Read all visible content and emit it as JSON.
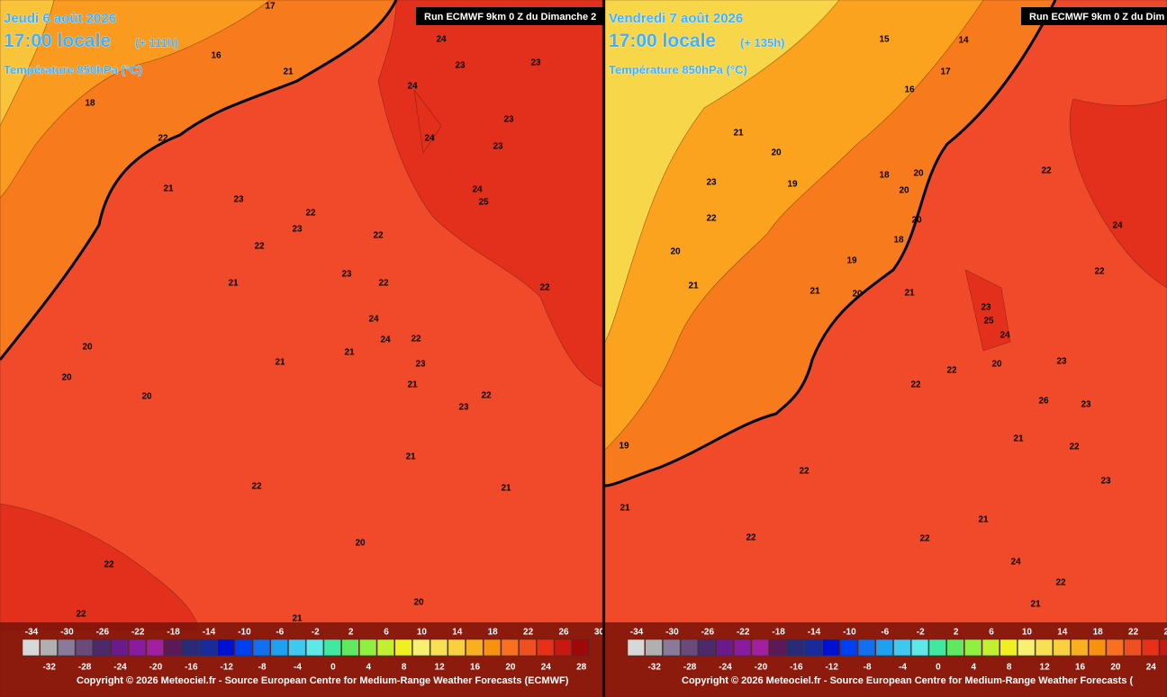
{
  "panels": [
    {
      "date": "Jeudi 6 août 2026",
      "time": "17:00 locale",
      "lead": "(+ 111h)",
      "field": "Température 850hPa (°C)",
      "run": "Run ECMWF 9km 0 Z du Dimanche 2",
      "copyright": "Copyright © 2026 Meteociel.fr - Source European Centre for Medium-Range Weather Forecasts (ECMWF)",
      "map_labels": [
        24,
        23,
        23,
        24,
        23,
        24,
        23,
        22,
        21,
        23,
        22,
        23,
        22,
        24,
        25,
        22,
        21,
        23,
        22,
        22,
        24,
        24,
        22,
        21,
        21,
        23,
        22,
        23,
        21,
        22,
        21,
        20,
        22,
        20,
        21,
        22,
        20,
        20,
        21,
        20,
        17,
        18,
        16,
        21
      ]
    },
    {
      "date": "Vendredi 7 août 2026",
      "time": "17:00 locale",
      "lead": "(+ 135h)",
      "field": "Température 850hPa (°C)",
      "run": "Run ECMWF 9km 0 Z du Dim",
      "copyright": "Copyright © 2026 Meteociel.fr - Source European Centre for Medium-Range Weather Forecasts (",
      "map_labels": [
        14,
        15,
        16,
        17,
        21,
        20,
        19,
        18,
        20,
        20,
        19,
        18,
        23,
        22,
        20,
        21,
        21,
        20,
        21,
        23,
        25,
        24,
        22,
        20,
        23,
        22,
        26,
        23,
        21,
        22,
        23,
        21,
        22,
        24,
        22,
        21,
        22,
        22,
        21,
        19,
        20,
        22,
        24,
        22
      ]
    }
  ],
  "legend": {
    "top_labels": [
      -34,
      -30,
      -26,
      -22,
      -18,
      -14,
      -10,
      -6,
      -2,
      2,
      6,
      10,
      14,
      18,
      22,
      26,
      30
    ],
    "bottom_labels": [
      -32,
      -28,
      -24,
      -20,
      -16,
      -12,
      -8,
      -4,
      0,
      4,
      8,
      12,
      16,
      20,
      24,
      28
    ]
  }
}
